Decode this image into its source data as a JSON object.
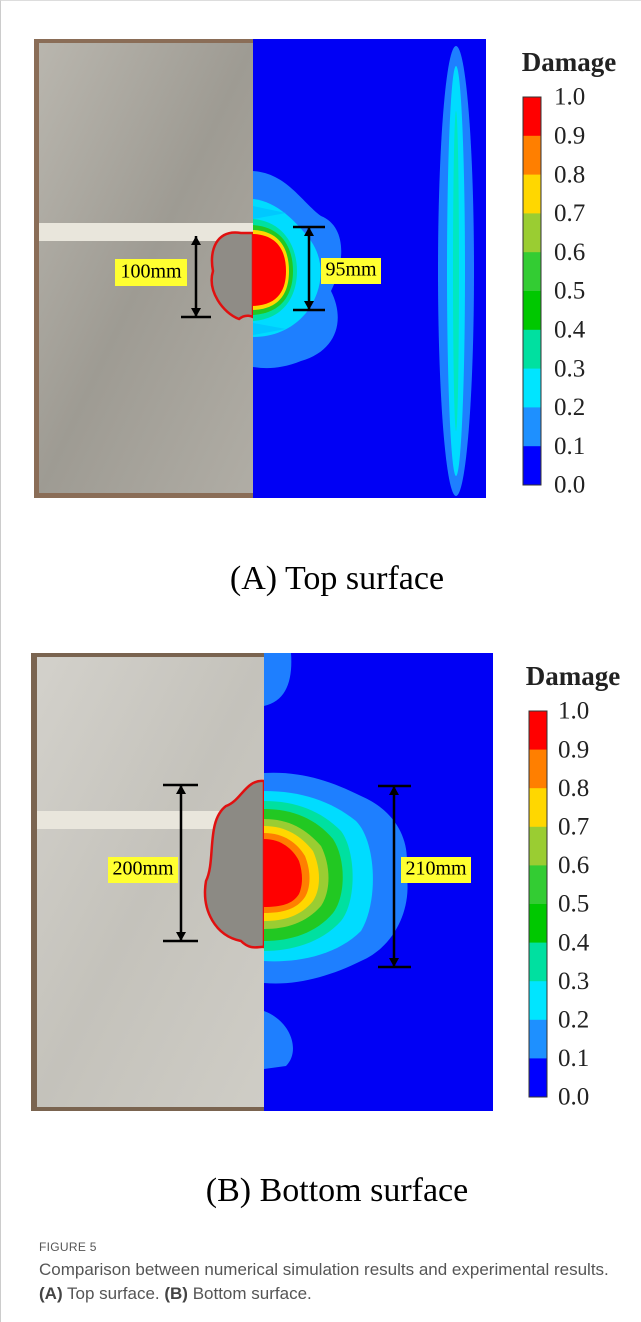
{
  "panels": [
    {
      "caption": "(A) Top surface",
      "measured": "100mm",
      "simulated": "95mm",
      "legend": {
        "title": "Damage",
        "ticks": [
          "1.0",
          "0.9",
          "0.8",
          "0.7",
          "0.6",
          "0.5",
          "0.4",
          "0.3",
          "0.2",
          "0.1",
          "0.0"
        ]
      }
    },
    {
      "caption": "(B) Bottom surface",
      "measured": "200mm",
      "simulated": "210mm",
      "legend": {
        "title": "Damage",
        "ticks": [
          "1.0",
          "0.9",
          "0.8",
          "0.7",
          "0.6",
          "0.5",
          "0.4",
          "0.3",
          "0.2",
          "0.1",
          "0.0"
        ]
      }
    }
  ],
  "figure": {
    "label": "FIGURE 5",
    "caption": [
      "Comparison between numerical simulation results and experimental results. ",
      "(A)",
      " Top surface. ",
      "(B)",
      " Bottom surface."
    ]
  }
}
